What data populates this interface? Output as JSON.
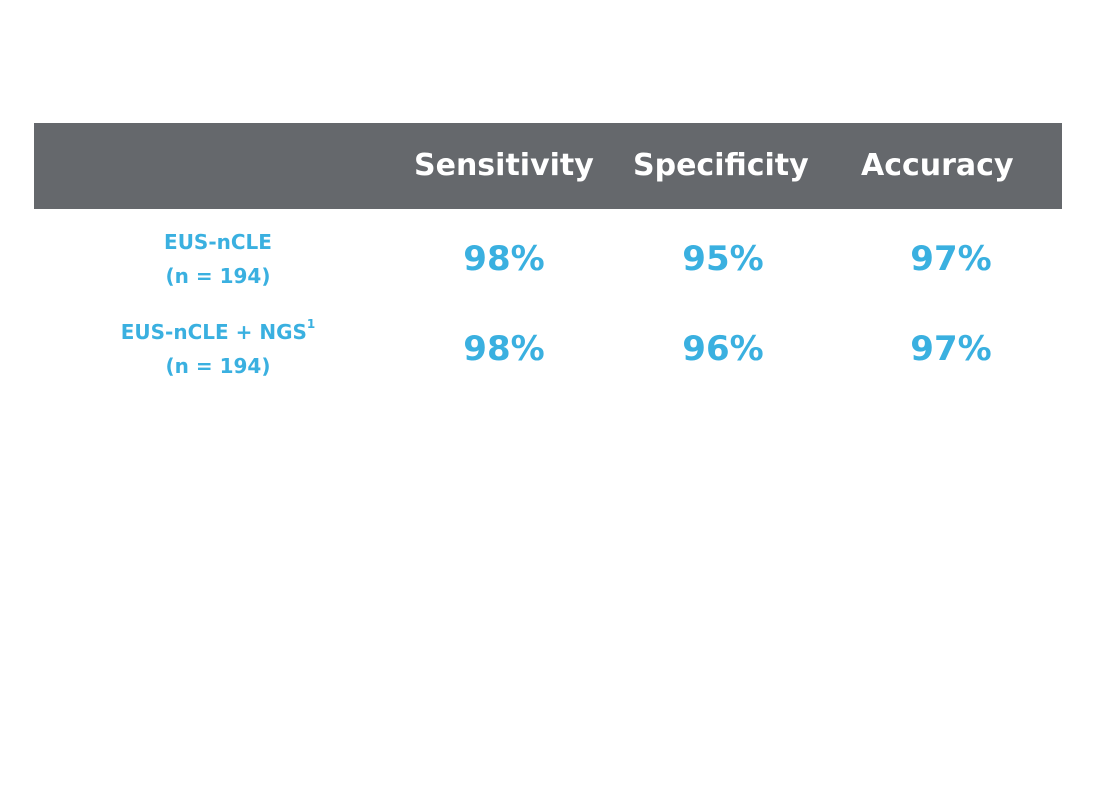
{
  "colors": {
    "header_bg": "#65686c",
    "header_text": "#ffffff",
    "accent": "#3ab0e0",
    "background": "#ffffff"
  },
  "table": {
    "headers": [
      "Sensitivity",
      "Specificity",
      "Accuracy"
    ],
    "rows": [
      {
        "label_line1": "EUS-nCLE",
        "label_sup": "",
        "label_line2": "(n = 194)",
        "values": [
          "98%",
          "95%",
          "97%"
        ]
      },
      {
        "label_line1": "EUS-nCLE + NGS",
        "label_sup": "1",
        "label_line2": "(n = 194)",
        "values": [
          "98%",
          "96%",
          "97%"
        ]
      }
    ]
  }
}
